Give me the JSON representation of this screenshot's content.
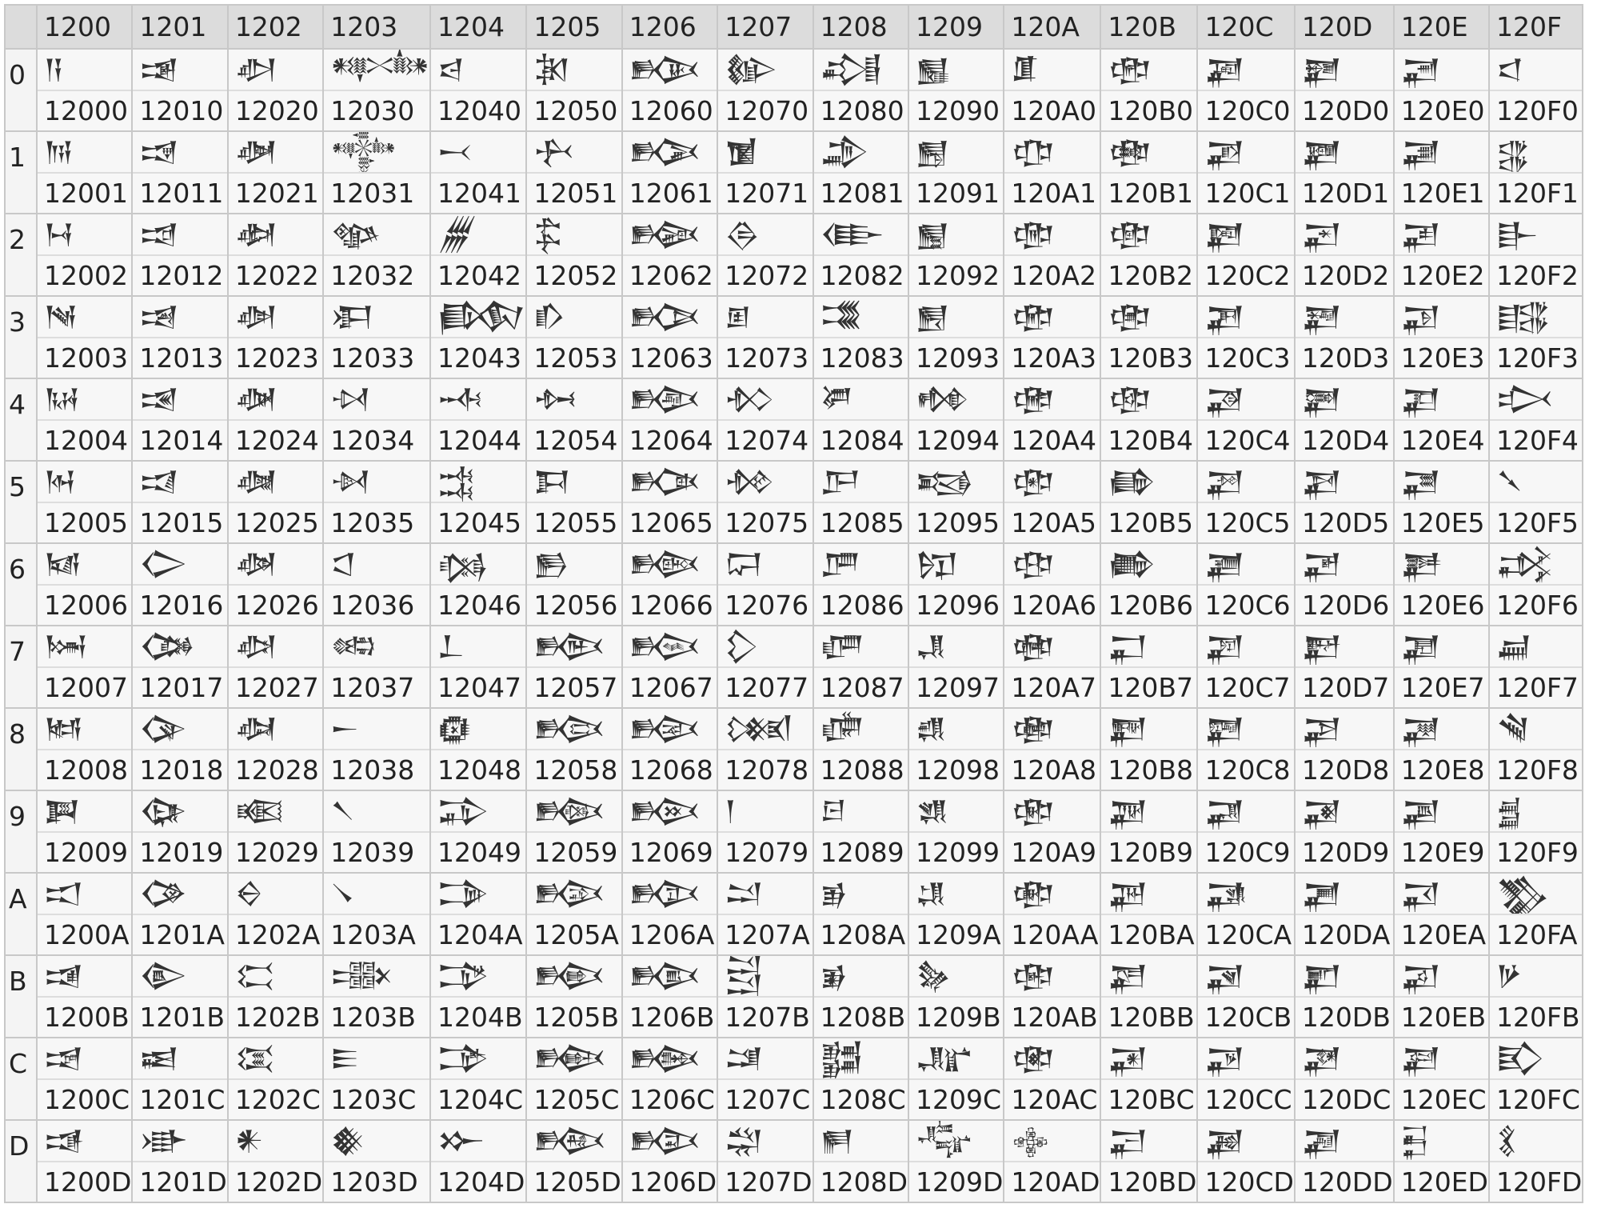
{
  "columns": [
    "1200",
    "1201",
    "1202",
    "1203",
    "1204",
    "1205",
    "1206",
    "1207",
    "1208",
    "1209",
    "120A",
    "120B",
    "120C",
    "120D",
    "120E",
    "120F"
  ],
  "rows": [
    "0",
    "1",
    "2",
    "3",
    "4",
    "5",
    "6",
    "7",
    "8",
    "9",
    "A",
    "B",
    "C",
    "D"
  ]
}
